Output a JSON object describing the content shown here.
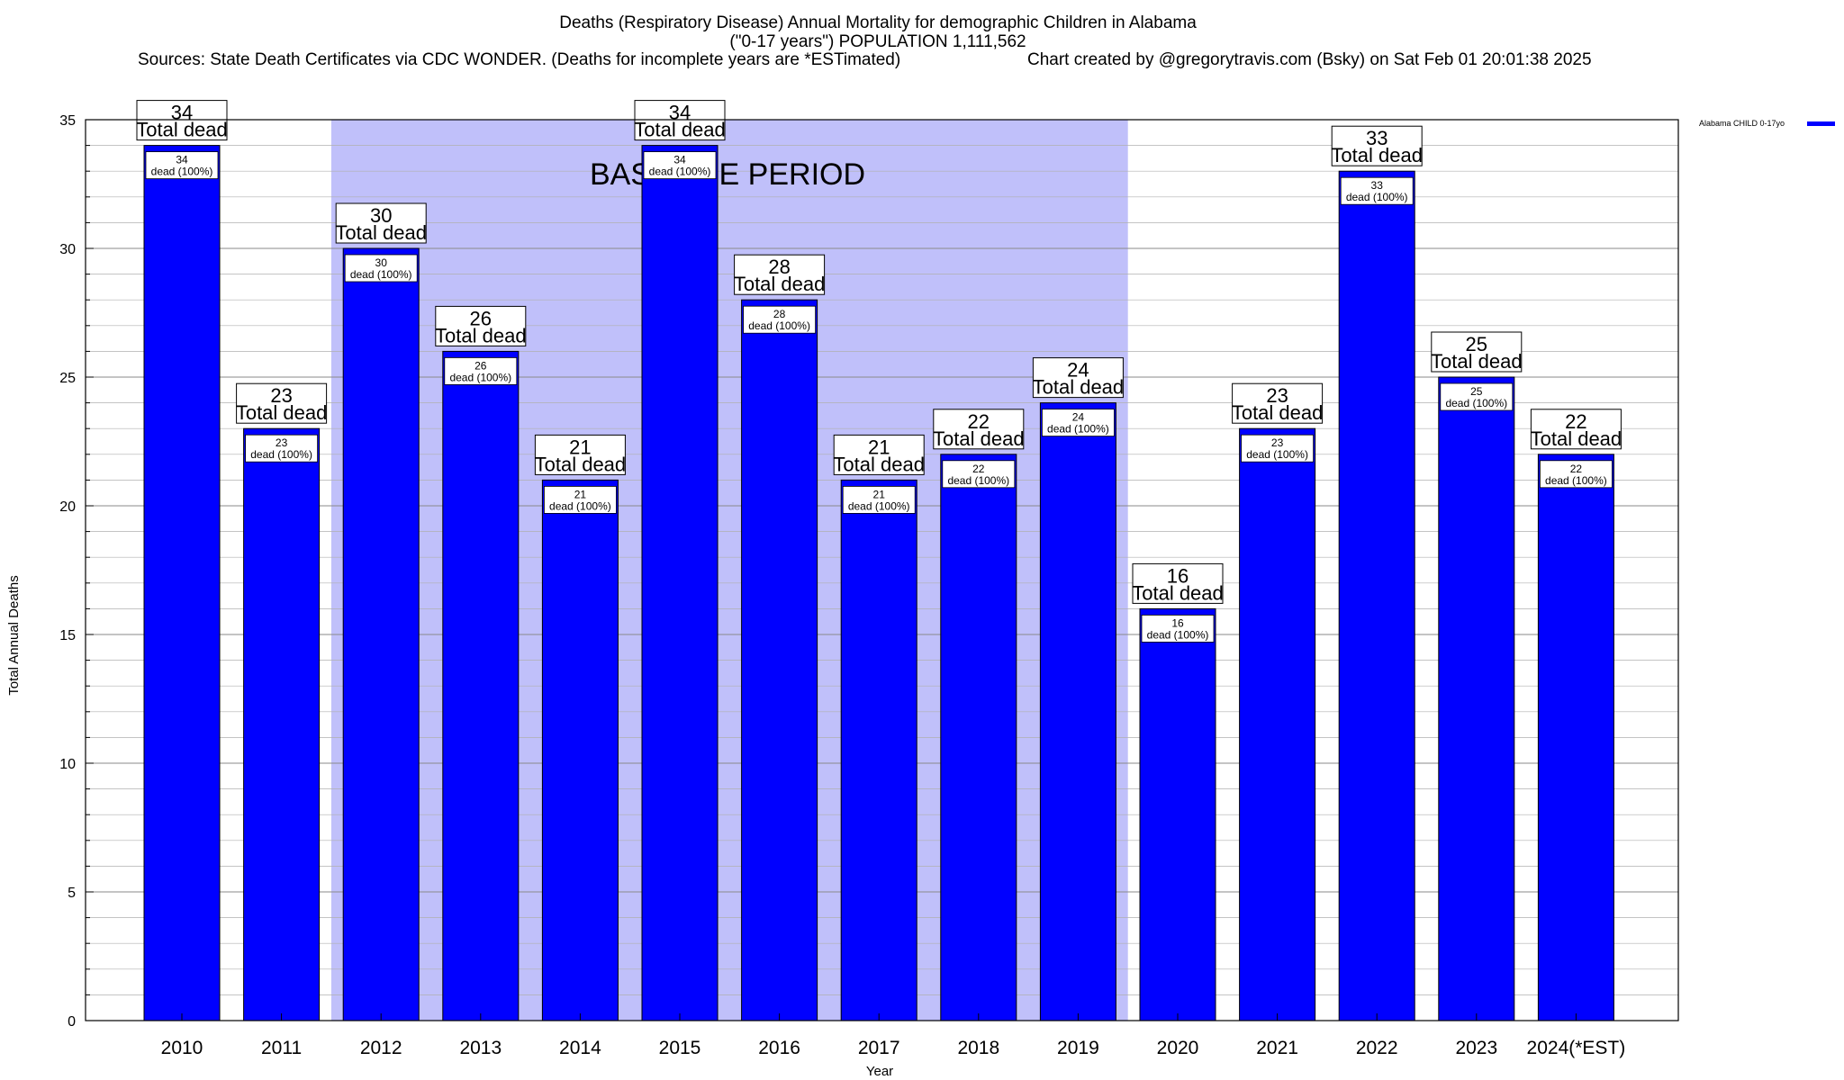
{
  "title": {
    "line1": "Deaths (Respiratory Disease) Annual Mortality for demographic Children in Alabama",
    "line2": "(\"0-17 years\") POPULATION 1,111,562",
    "sources": "Sources: State Death Certificates via CDC WONDER. (Deaths for incomplete years are *ESTimated)",
    "credit": "Chart created by @gregorytravis.com (Bsky) on Sat Feb 01 20:01:38 2025"
  },
  "colors": {
    "bar": "#0000ff",
    "baseline_band": "#c0c0fa",
    "grid": "#b0b0b0"
  },
  "chart_data": {
    "type": "bar",
    "title": "Deaths (Respiratory Disease) Annual Mortality for demographic Children in Alabama",
    "xlabel": "Year",
    "ylabel": "Total Annual Deaths",
    "ylim": [
      0,
      35
    ],
    "yticks": [
      0,
      5,
      10,
      15,
      20,
      25,
      30,
      35
    ],
    "grid": true,
    "legend_position": "top-right",
    "categories": [
      "2010",
      "2011",
      "2012",
      "2013",
      "2014",
      "2015",
      "2016",
      "2017",
      "2018",
      "2019",
      "2020",
      "2021",
      "2022",
      "2023",
      "2024(*EST)"
    ],
    "series": [
      {
        "name": "Alabama CHILD 0-17yo",
        "values": [
          34,
          23,
          30,
          26,
          21,
          34,
          28,
          21,
          22,
          24,
          16,
          23,
          33,
          25,
          22
        ]
      }
    ],
    "baseline_period": {
      "label": "BASELINE PERIOD",
      "start": "2012",
      "end": "2019"
    },
    "total_label": "Total dead",
    "bar_label": "dead (100%)"
  }
}
